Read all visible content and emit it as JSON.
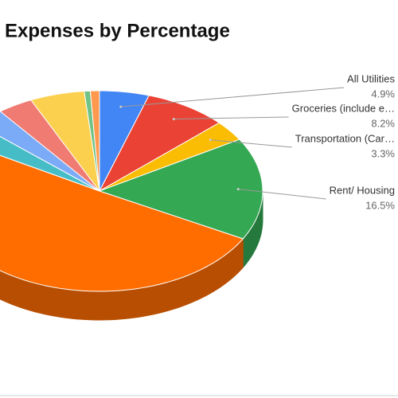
{
  "chart_data": {
    "type": "pie",
    "title": "Expenses by Percentage",
    "categories": [
      "All Utilities",
      "Groceries (include e…",
      "Transportation (Car…",
      "Rent/ Housing",
      null,
      null,
      null,
      null,
      null,
      null,
      null
    ],
    "values": [
      4.9,
      8.2,
      3.3,
      16.5,
      50.5,
      3.2,
      3.0,
      3.5,
      5.4,
      0.6,
      0.9
    ],
    "value_labels": [
      "4.9%",
      "8.2%",
      "3.3%",
      "16.5%",
      null,
      null,
      null,
      null,
      null,
      null,
      null
    ],
    "colors": [
      "#4285f4",
      "#ea4335",
      "#fbbc04",
      "#34a853",
      "#ff6d01",
      "#46bdc6",
      "#7baaf7",
      "#f07b72",
      "#fcd04f",
      "#71c287",
      "#ff994d"
    ]
  }
}
